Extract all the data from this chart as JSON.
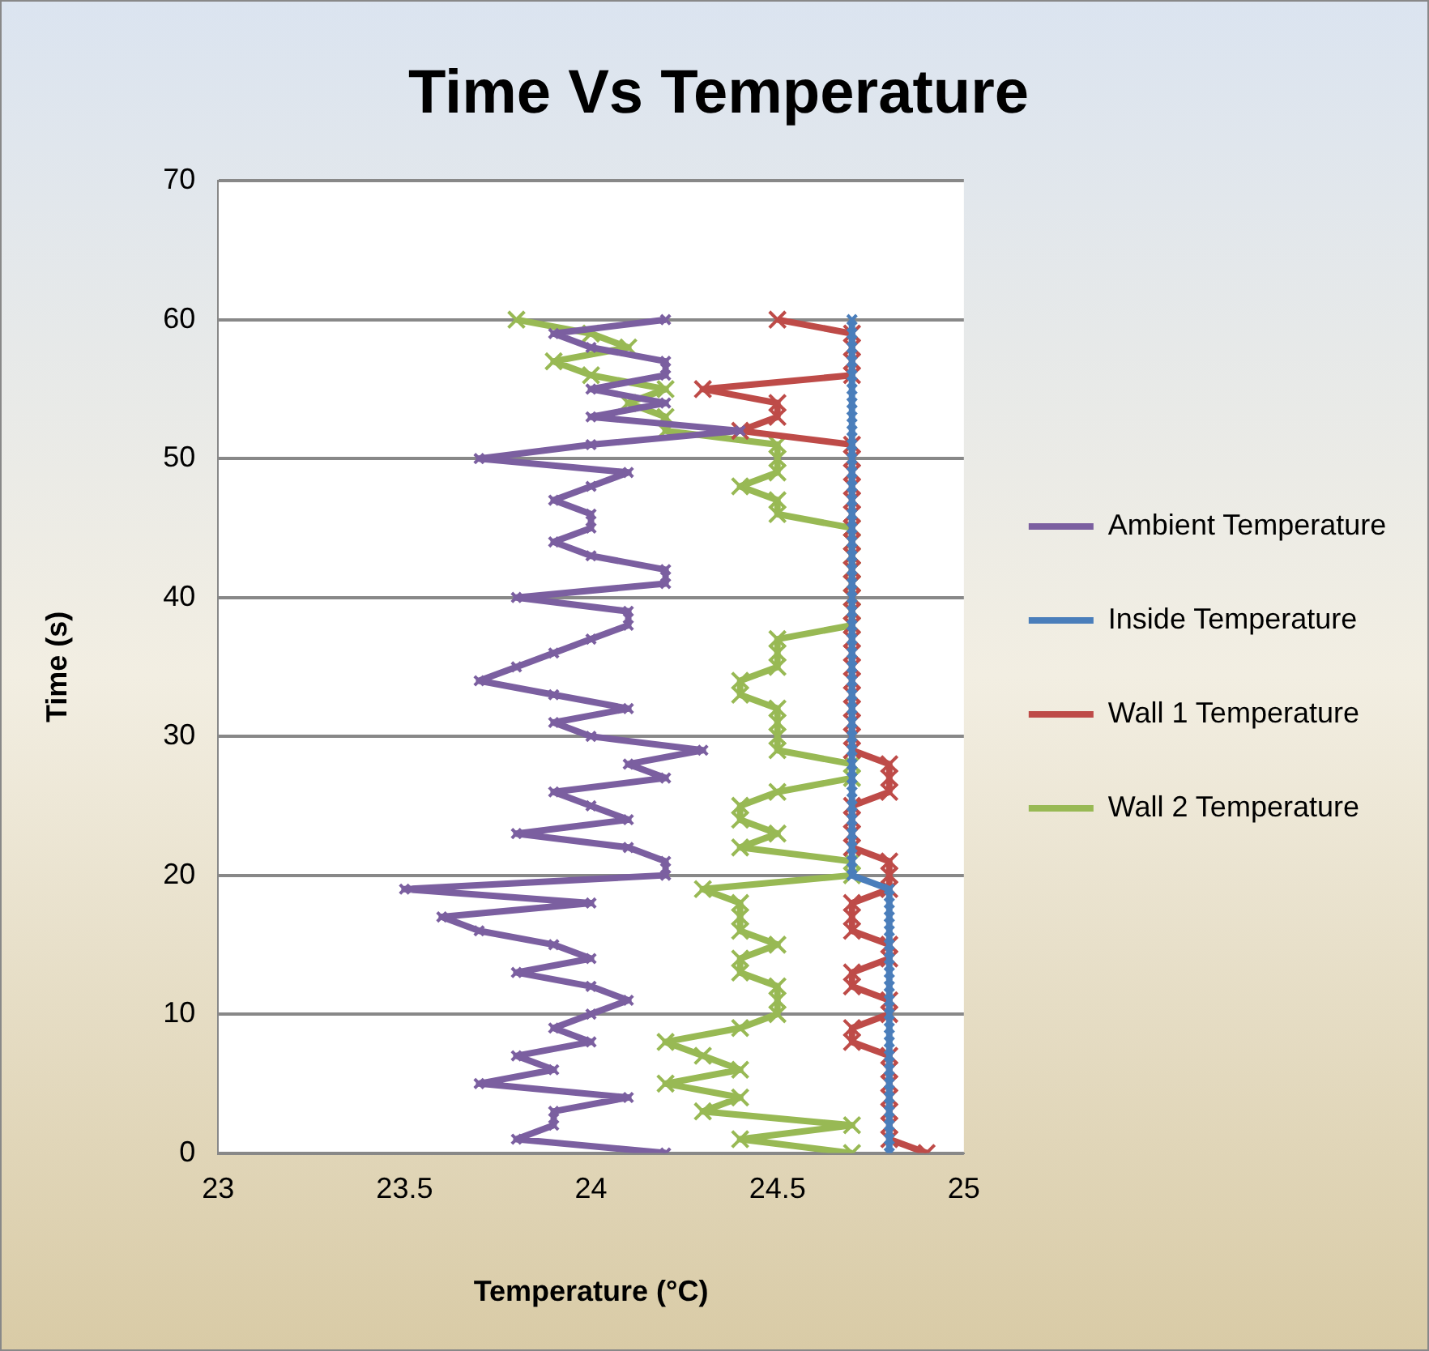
{
  "chart_data": {
    "type": "line",
    "title": "Time Vs Temperature",
    "xlabel": "Temperature (°C)",
    "ylabel": "Time (s)",
    "xlim": [
      23,
      25
    ],
    "xticks": [
      23,
      23.5,
      24,
      24.5,
      25
    ],
    "ylim": [
      0,
      70
    ],
    "yticks": [
      0,
      10,
      20,
      30,
      40,
      50,
      60,
      70
    ],
    "grid": "y",
    "legend": "right",
    "series": [
      {
        "name": "Ambient Temperature",
        "color": "#7b5fa0",
        "marker": "cross",
        "x": [
          24.2,
          23.8,
          23.9,
          23.9,
          24.1,
          23.7,
          23.9,
          23.8,
          24.0,
          23.9,
          24.0,
          24.1,
          24.0,
          23.8,
          24.0,
          23.9,
          23.7,
          23.6,
          24.0,
          23.5,
          24.2,
          24.2,
          24.1,
          23.8,
          24.1,
          24.0,
          23.9,
          24.2,
          24.1,
          24.3,
          24.0,
          23.9,
          24.1,
          23.9,
          23.7,
          23.8,
          23.9,
          24.0,
          24.1,
          24.1,
          23.8,
          24.2,
          24.2,
          24.0,
          23.9,
          24.0,
          24.0,
          23.9,
          24.0,
          24.1,
          23.7,
          24.0,
          24.4,
          24.0,
          24.2,
          24.0,
          24.2,
          24.2,
          24.0,
          23.9,
          24.2
        ],
        "values": [
          0,
          1,
          2,
          3,
          4,
          5,
          6,
          7,
          8,
          9,
          10,
          11,
          12,
          13,
          14,
          15,
          16,
          17,
          18,
          19,
          20,
          21,
          22,
          23,
          24,
          25,
          26,
          27,
          28,
          29,
          30,
          31,
          32,
          33,
          34,
          35,
          36,
          37,
          38,
          39,
          40,
          41,
          42,
          43,
          44,
          45,
          46,
          47,
          48,
          49,
          50,
          51,
          52,
          53,
          54,
          55,
          56,
          57,
          58,
          59,
          60
        ]
      },
      {
        "name": "Inside Temperature",
        "color": "#4a7ebb",
        "marker": "cross",
        "x": [
          24.8,
          24.8,
          24.8,
          24.8,
          24.8,
          24.8,
          24.8,
          24.8,
          24.8,
          24.8,
          24.8,
          24.8,
          24.8,
          24.8,
          24.8,
          24.8,
          24.8,
          24.8,
          24.8,
          24.8,
          24.7,
          24.7,
          24.7,
          24.7,
          24.7,
          24.7,
          24.7,
          24.7,
          24.7,
          24.7,
          24.7,
          24.7,
          24.7,
          24.7,
          24.7,
          24.7,
          24.7,
          24.7,
          24.7,
          24.7,
          24.7,
          24.7,
          24.7,
          24.7,
          24.7,
          24.7,
          24.7,
          24.7,
          24.7,
          24.7,
          24.7,
          24.7,
          24.7,
          24.7,
          24.7,
          24.7,
          24.7,
          24.7,
          24.7,
          24.7,
          24.7
        ],
        "values": [
          0,
          1,
          2,
          3,
          4,
          5,
          6,
          7,
          8,
          9,
          10,
          11,
          12,
          13,
          14,
          15,
          16,
          17,
          18,
          19,
          20,
          21,
          22,
          23,
          24,
          25,
          26,
          27,
          28,
          29,
          30,
          31,
          32,
          33,
          34,
          35,
          36,
          37,
          38,
          39,
          40,
          41,
          42,
          43,
          44,
          45,
          46,
          47,
          48,
          49,
          50,
          51,
          52,
          53,
          54,
          55,
          56,
          57,
          58,
          59,
          60
        ]
      },
      {
        "name": "Wall 1 Temperature",
        "color": "#be4b48",
        "marker": "cross",
        "x": [
          24.9,
          24.8,
          24.8,
          24.8,
          24.8,
          24.8,
          24.8,
          24.8,
          24.7,
          24.7,
          24.8,
          24.8,
          24.7,
          24.7,
          24.8,
          24.8,
          24.7,
          24.7,
          24.7,
          24.8,
          24.8,
          24.8,
          24.7,
          24.7,
          24.7,
          24.7,
          24.8,
          24.8,
          24.8,
          24.7,
          24.7,
          24.7,
          24.7,
          24.7,
          24.7,
          24.7,
          24.7,
          24.7,
          24.7,
          24.7,
          24.7,
          24.7,
          24.7,
          24.7,
          24.7,
          24.7,
          24.7,
          24.7,
          24.7,
          24.7,
          24.7,
          24.7,
          24.4,
          24.5,
          24.5,
          24.3,
          24.7,
          24.7,
          24.7,
          24.7,
          24.5
        ],
        "values": [
          0,
          1,
          2,
          3,
          4,
          5,
          6,
          7,
          8,
          9,
          10,
          11,
          12,
          13,
          14,
          15,
          16,
          17,
          18,
          19,
          20,
          21,
          22,
          23,
          24,
          25,
          26,
          27,
          28,
          29,
          30,
          31,
          32,
          33,
          34,
          35,
          36,
          37,
          38,
          39,
          40,
          41,
          42,
          43,
          44,
          45,
          46,
          47,
          48,
          49,
          50,
          51,
          52,
          53,
          54,
          55,
          56,
          57,
          58,
          59,
          60
        ]
      },
      {
        "name": "Wall 2 Temperature",
        "color": "#98b954",
        "marker": "cross",
        "x": [
          24.7,
          24.4,
          24.7,
          24.3,
          24.4,
          24.2,
          24.4,
          24.3,
          24.2,
          24.4,
          24.5,
          24.5,
          24.5,
          24.4,
          24.4,
          24.5,
          24.4,
          24.4,
          24.4,
          24.3,
          24.7,
          24.7,
          24.4,
          24.5,
          24.4,
          24.4,
          24.5,
          24.7,
          24.7,
          24.5,
          24.5,
          24.5,
          24.5,
          24.4,
          24.4,
          24.5,
          24.5,
          24.5,
          24.7,
          24.7,
          24.7,
          24.7,
          24.7,
          24.7,
          24.7,
          24.7,
          24.5,
          24.5,
          24.4,
          24.5,
          24.5,
          24.5,
          24.2,
          24.2,
          24.1,
          24.2,
          24.0,
          23.9,
          24.1,
          24.0,
          23.8
        ],
        "values": [
          0,
          1,
          2,
          3,
          4,
          5,
          6,
          7,
          8,
          9,
          10,
          11,
          12,
          13,
          14,
          15,
          16,
          17,
          18,
          19,
          20,
          21,
          22,
          23,
          24,
          25,
          26,
          27,
          28,
          29,
          30,
          31,
          32,
          33,
          34,
          35,
          36,
          37,
          38,
          39,
          40,
          41,
          42,
          43,
          44,
          45,
          46,
          47,
          48,
          49,
          50,
          51,
          52,
          53,
          54,
          55,
          56,
          57,
          58,
          59,
          60
        ]
      }
    ]
  }
}
